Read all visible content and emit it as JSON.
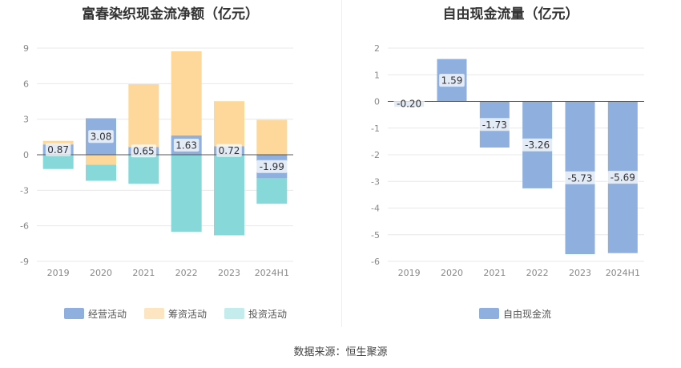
{
  "source_text": "数据来源：恒生聚源",
  "chart_data": [
    {
      "type": "bar",
      "stacked": true,
      "title": "富春染织现金流净额（亿元）",
      "categories": [
        "2019",
        "2020",
        "2021",
        "2022",
        "2023",
        "2024H1"
      ],
      "ylim": [
        -9,
        9
      ],
      "yticks": [
        -9,
        -6,
        -3,
        0,
        3,
        6,
        9
      ],
      "grid": true,
      "legend_position": "bottom",
      "series": [
        {
          "name": "经营活动",
          "color": "#8fb0de",
          "values": [
            0.87,
            3.08,
            0.65,
            1.63,
            0.72,
            -1.99
          ],
          "labels": [
            "0.87",
            "3.08",
            "0.65",
            "1.63",
            "0.72",
            "-1.99"
          ]
        },
        {
          "name": "筹资活动",
          "color": "#fdd89a",
          "values": [
            0.3,
            -0.85,
            5.3,
            7.1,
            3.8,
            2.95
          ]
        },
        {
          "name": "投资活动",
          "color": "#86d8d9",
          "values": [
            -1.2,
            -1.35,
            -2.45,
            -6.5,
            -6.8,
            -2.15
          ]
        }
      ],
      "legend_colors": {
        "经营活动": "#8fb0de",
        "筹资活动": "#fde5c2",
        "投资活动": "#c5ecec"
      }
    },
    {
      "type": "bar",
      "title": "自由现金流量（亿元）",
      "categories": [
        "2019",
        "2020",
        "2021",
        "2022",
        "2023",
        "2024H1"
      ],
      "ylim": [
        -6,
        2
      ],
      "yticks": [
        -6,
        -5,
        -4,
        -3,
        -2,
        -1,
        0,
        1,
        2
      ],
      "grid": true,
      "legend_position": "bottom",
      "series": [
        {
          "name": "自由现金流",
          "color": "#8fb0de",
          "values": [
            -0.2,
            1.59,
            -1.73,
            -3.26,
            -5.73,
            -5.69
          ],
          "labels": [
            "-0.20",
            "1.59",
            "-1.73",
            "-3.26",
            "-5.73",
            "-5.69"
          ]
        }
      ]
    }
  ]
}
